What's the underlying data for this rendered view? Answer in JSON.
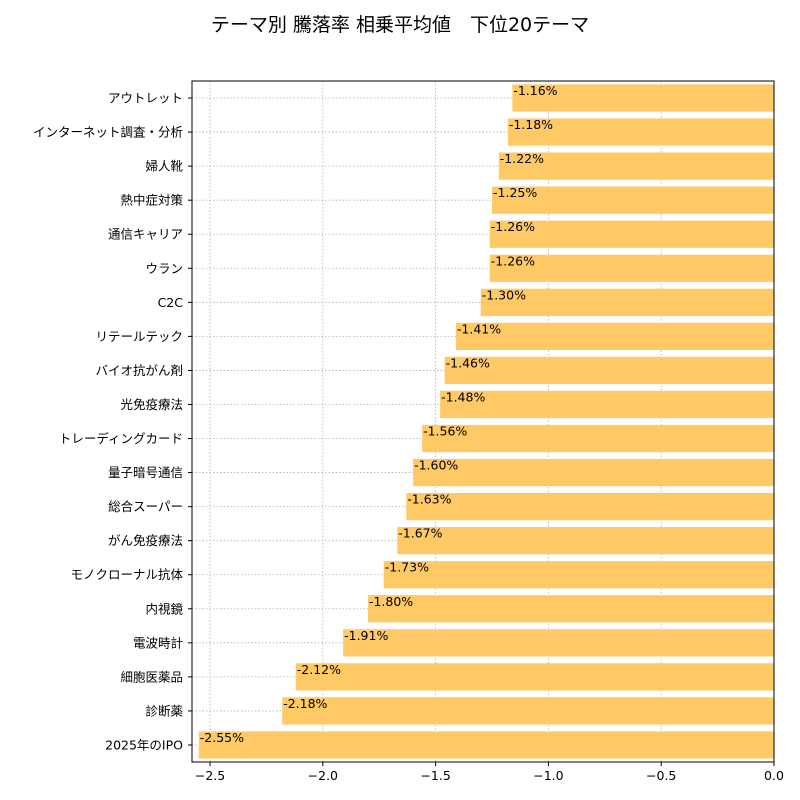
{
  "chart_data": {
    "type": "bar",
    "orientation": "horizontal",
    "title": "テーマ別 騰落率 相乗平均値　下位20テーマ",
    "xlabel": "",
    "ylabel": "",
    "xlim": [
      -2.58,
      0.0
    ],
    "x_ticks": [
      {
        "value": -2.5,
        "label": "−2.5"
      },
      {
        "value": -2.0,
        "label": "−2.0"
      },
      {
        "value": -1.5,
        "label": "−1.5"
      },
      {
        "value": -1.0,
        "label": "−1.0"
      },
      {
        "value": -0.5,
        "label": "−0.5"
      },
      {
        "value": 0.0,
        "label": "0.0"
      }
    ],
    "grid": true,
    "bar_color": "#FFC966",
    "categories": [
      "アウトレット",
      "インターネット調査・分析",
      "婦人靴",
      "熱中症対策",
      "通信キャリア",
      "ウラン",
      "C2C",
      "リテールテック",
      "バイオ抗がん剤",
      "光免疫療法",
      "トレーディングカード",
      "量子暗号通信",
      "総合スーパー",
      "がん免疫療法",
      "モノクローナル抗体",
      "内視鏡",
      "電波時計",
      "細胞医薬品",
      "診断薬",
      "2025年のIPO"
    ],
    "values": [
      -1.16,
      -1.18,
      -1.22,
      -1.25,
      -1.26,
      -1.26,
      -1.3,
      -1.41,
      -1.46,
      -1.48,
      -1.56,
      -1.6,
      -1.63,
      -1.67,
      -1.73,
      -1.8,
      -1.91,
      -2.12,
      -2.18,
      -2.55
    ],
    "value_labels": [
      "-1.16%",
      "-1.18%",
      "-1.22%",
      "-1.25%",
      "-1.26%",
      "-1.26%",
      "-1.30%",
      "-1.41%",
      "-1.46%",
      "-1.48%",
      "-1.56%",
      "-1.60%",
      "-1.63%",
      "-1.67%",
      "-1.73%",
      "-1.80%",
      "-1.91%",
      "-2.12%",
      "-2.18%",
      "-2.55%"
    ]
  }
}
